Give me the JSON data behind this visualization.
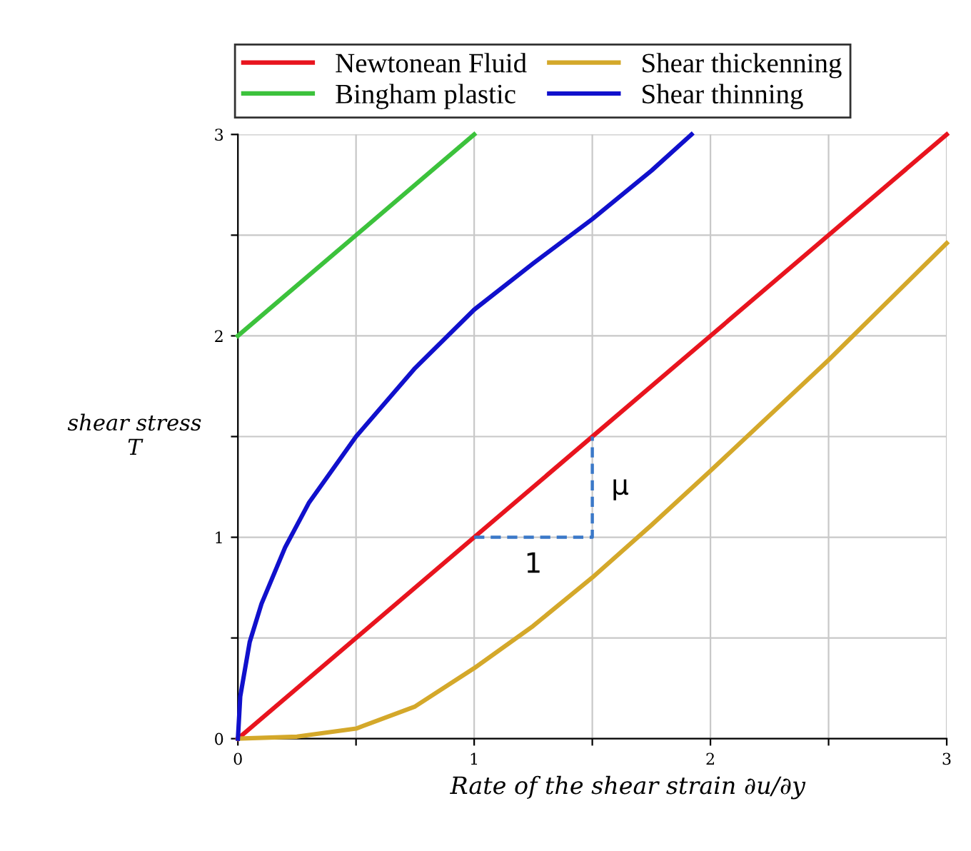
{
  "chart_data": {
    "type": "line",
    "xlabel": "Rate of the shear strain ∂u/∂y",
    "ylabel": "shear stress\nT",
    "xlim": [
      0,
      3
    ],
    "ylim": [
      0,
      3
    ],
    "xticks": [
      0,
      {
        "value": 0.5,
        "label": null
      },
      1,
      {
        "value": 1.5,
        "label": null
      },
      2,
      {
        "value": 2.5,
        "label": null
      },
      3
    ],
    "yticks": [
      0,
      {
        "value": 0.5,
        "label": null
      },
      1,
      {
        "value": 1.5,
        "label": null
      },
      2,
      {
        "value": 2.5,
        "label": null
      },
      3
    ],
    "grid": true,
    "legend": "top",
    "marker": "none",
    "series": [
      {
        "name": "Newtonean Fluid",
        "color": "#e8141e",
        "x": [
          0,
          3
        ],
        "values": [
          0,
          3
        ]
      },
      {
        "name": "Bingham plastic",
        "color": "#3cc23c",
        "x": [
          0,
          1
        ],
        "values": [
          2,
          3
        ]
      },
      {
        "name": "Shear thickenning",
        "color": "#d4a82a",
        "x": [
          0,
          0.25,
          0.5,
          0.75,
          1,
          1.25,
          1.5,
          1.75,
          2,
          2.5,
          3
        ],
        "values": [
          0,
          0.01,
          0.05,
          0.16,
          0.35,
          0.56,
          0.8,
          1.06,
          1.33,
          1.88,
          2.46
        ]
      },
      {
        "name": "Shear thinning",
        "color": "#1010cc",
        "x": [
          0,
          0.01,
          0.05,
          0.1,
          0.2,
          0.3,
          0.5,
          0.75,
          1,
          1.25,
          1.5,
          1.75,
          1.92
        ],
        "values": [
          0,
          0.21,
          0.48,
          0.67,
          0.95,
          1.17,
          1.5,
          1.84,
          2.13,
          2.36,
          2.58,
          2.82,
          3.0
        ]
      },
      {
        "color": "#3a78c8",
        "line_style": "dashed",
        "x": [
          1,
          1.5,
          1.5
        ],
        "values": [
          1,
          1,
          1.5
        ]
      }
    ],
    "annotations": [
      "1",
      "μ"
    ]
  }
}
